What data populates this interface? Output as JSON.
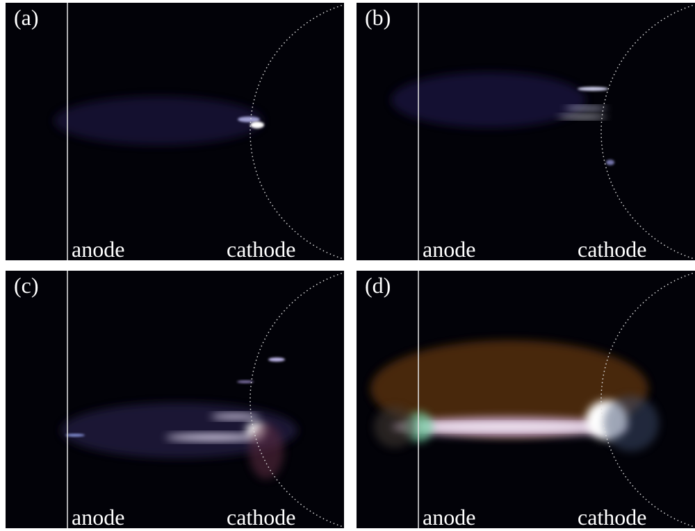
{
  "panels": [
    {
      "label": "(a)",
      "anode": "anode",
      "cathode": "cathode"
    },
    {
      "label": "(b)",
      "anode": "anode",
      "cathode": "cathode"
    },
    {
      "label": "(c)",
      "anode": "anode",
      "cathode": "cathode"
    },
    {
      "label": "(d)",
      "anode": "anode",
      "cathode": "cathode"
    }
  ]
}
